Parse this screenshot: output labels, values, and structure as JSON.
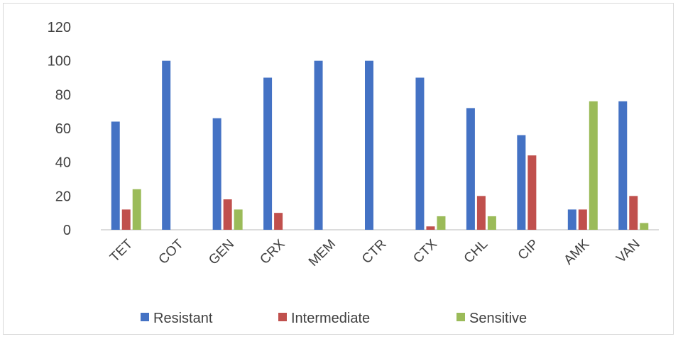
{
  "chart_data": {
    "type": "bar",
    "categories": [
      "TET",
      "COT",
      "GEN",
      "CRX",
      "MEM",
      "CTR",
      "CTX",
      "CHL",
      "CIP",
      "AMK",
      "VAN"
    ],
    "series": [
      {
        "name": "Resistant",
        "color": "#4472c4",
        "values": [
          64,
          100,
          66,
          90,
          100,
          100,
          90,
          72,
          56,
          12,
          76
        ]
      },
      {
        "name": "Intermediate",
        "color": "#c0504d",
        "values": [
          12,
          0,
          18,
          10,
          0,
          0,
          2,
          20,
          44,
          12,
          20
        ]
      },
      {
        "name": "Sensitive",
        "color": "#9bbb59",
        "values": [
          24,
          0,
          12,
          0,
          0,
          0,
          8,
          8,
          0,
          76,
          4
        ]
      }
    ],
    "yticks": [
      "0",
      "20",
      "40",
      "60",
      "80",
      "100",
      "120"
    ],
    "ylim": [
      0,
      120
    ],
    "title": "",
    "xlabel": "",
    "ylabel": "",
    "legend_position": "bottom",
    "grid": false
  }
}
